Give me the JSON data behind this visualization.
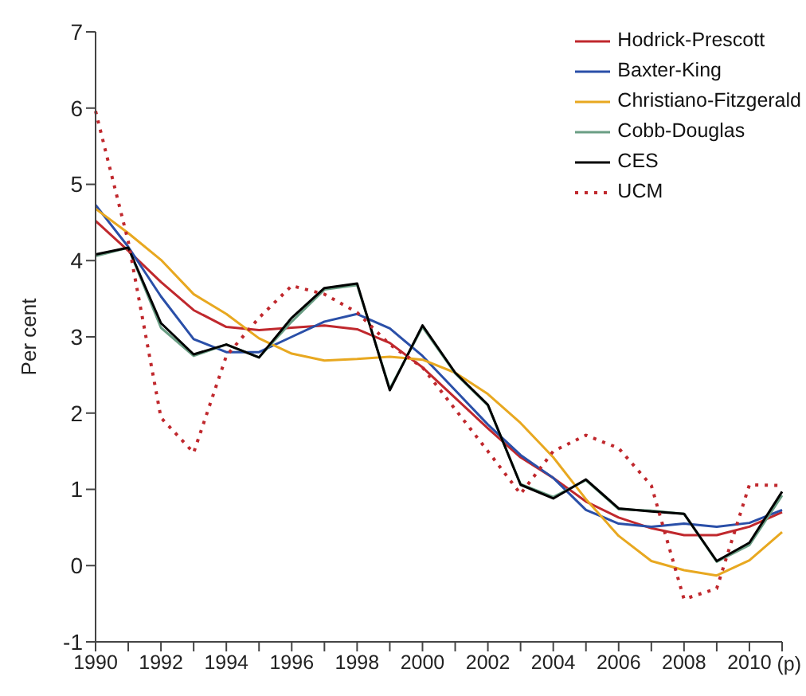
{
  "chart_data": {
    "type": "line",
    "ylabel": "Per cent",
    "categories": [
      "1990",
      null,
      "1992",
      null,
      "1994",
      null,
      "1996",
      null,
      "1998",
      null,
      "2000",
      null,
      "2002",
      null,
      "2004",
      null,
      "2006",
      null,
      "2008",
      null,
      "2010",
      null
    ],
    "ylim": [
      -1,
      7
    ],
    "yticks": [
      -1,
      0,
      1,
      2,
      3,
      4,
      5,
      6,
      7
    ],
    "grid": false,
    "legend": "top right",
    "marker": "none",
    "annotations": [
      "(p)"
    ],
    "series": [
      {
        "name": "Hodrick-Prescott",
        "color": "#c0282d",
        "line_style": "solid",
        "values": [
          4.52,
          4.13,
          3.72,
          3.35,
          3.13,
          3.09,
          3.12,
          3.15,
          3.1,
          2.92,
          2.6,
          2.2,
          1.8,
          1.42,
          1.15,
          0.84,
          0.63,
          0.49,
          0.4,
          0.4,
          0.51,
          0.7
        ]
      },
      {
        "name": "Baxter-King",
        "color": "#2a4fa8",
        "line_style": "solid",
        "values": [
          4.73,
          4.18,
          3.53,
          2.97,
          2.8,
          2.8,
          3.0,
          3.2,
          3.3,
          3.11,
          2.75,
          2.3,
          1.85,
          1.45,
          1.15,
          0.73,
          0.55,
          0.51,
          0.55,
          0.51,
          0.56,
          0.73
        ]
      },
      {
        "name": "Christiano-Fitzgerald",
        "color": "#e8a820",
        "line_style": "solid",
        "values": [
          4.68,
          4.36,
          4.01,
          3.56,
          3.3,
          2.98,
          2.78,
          2.69,
          2.71,
          2.74,
          2.7,
          2.53,
          2.25,
          1.87,
          1.42,
          0.87,
          0.39,
          0.06,
          -0.06,
          -0.13,
          0.07,
          0.44
        ]
      },
      {
        "name": "Cobb-Douglas",
        "color": "#6a9e84",
        "line_style": "solid",
        "values": [
          4.06,
          4.17,
          3.12,
          2.75,
          2.9,
          2.73,
          3.2,
          3.62,
          3.68,
          2.32,
          3.13,
          2.52,
          2.1,
          1.07,
          0.9,
          1.12,
          0.74,
          0.72,
          0.68,
          0.05,
          0.27,
          0.92
        ]
      },
      {
        "name": "CES",
        "color": "#000000",
        "line_style": "solid",
        "values": [
          4.08,
          4.17,
          3.18,
          2.77,
          2.9,
          2.73,
          3.25,
          3.64,
          3.7,
          2.3,
          3.15,
          2.53,
          2.11,
          1.06,
          0.88,
          1.13,
          0.75,
          0.71,
          0.68,
          0.06,
          0.3,
          0.97
        ]
      },
      {
        "name": "UCM",
        "color": "#c0282d",
        "line_style": "dotted",
        "values": [
          5.96,
          4.25,
          1.94,
          1.48,
          2.75,
          3.25,
          3.67,
          3.56,
          3.32,
          2.9,
          2.6,
          2.05,
          1.5,
          0.94,
          1.5,
          1.71,
          1.54,
          1.05,
          -0.44,
          -0.3,
          1.06,
          1.05
        ]
      }
    ]
  }
}
